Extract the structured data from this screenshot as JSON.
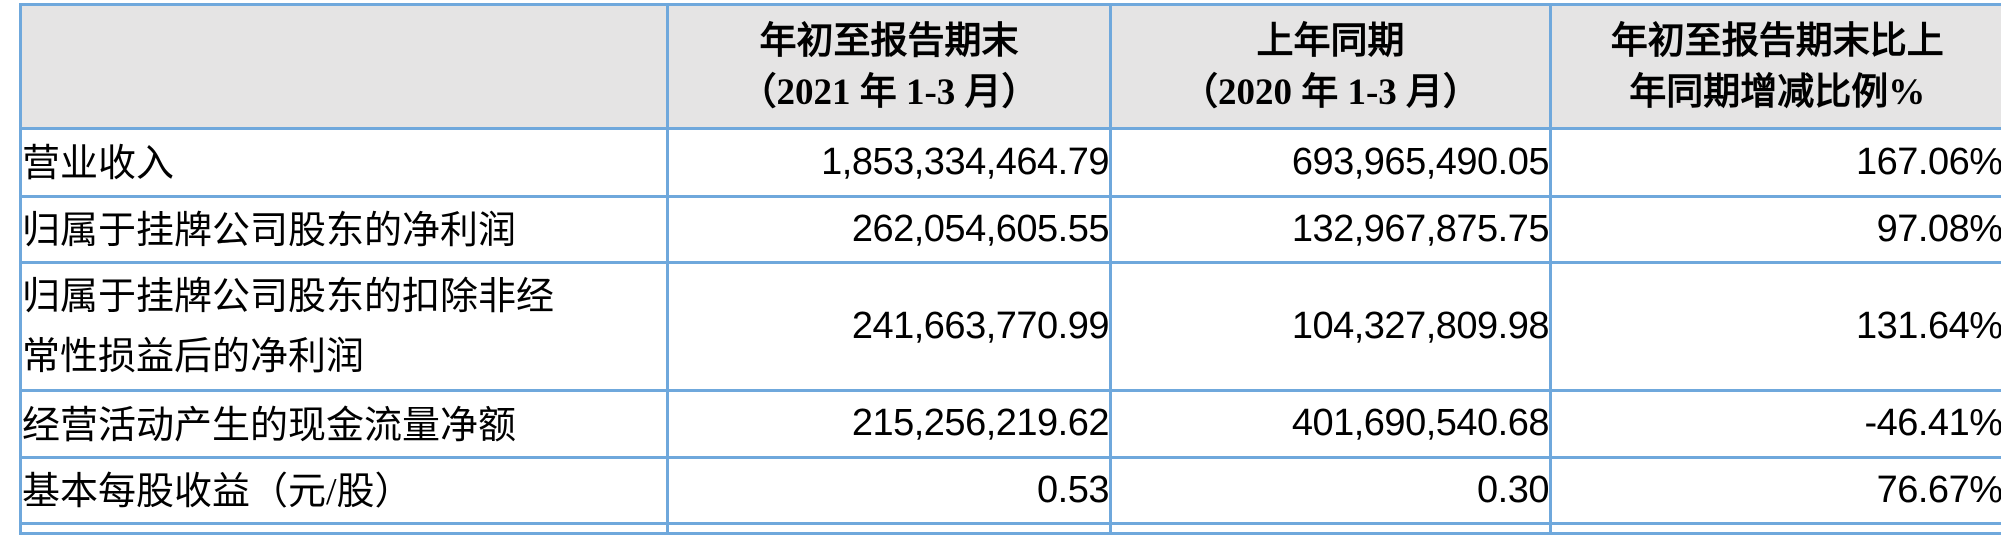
{
  "colors": {
    "border": "#6FA8DC",
    "header_background": "#E5E4E4",
    "body_background": "#FFFFFF",
    "text": "#000000"
  },
  "table": {
    "header": {
      "metric_col": "",
      "current_period": {
        "line1": "年初至报告期末",
        "line2": "（2021 年 1-3 月）"
      },
      "prior_period": {
        "line1": "上年同期",
        "line2": "（2020 年 1-3 月）"
      },
      "change": {
        "line1": "年初至报告期末比上",
        "line2": "年同期增减比例%"
      }
    },
    "rows": [
      {
        "label": "营业收入",
        "current": "1,853,334,464.79",
        "prior": "693,965,490.05",
        "change": "167.06%"
      },
      {
        "label": "归属于挂牌公司股东的净利润",
        "current": "262,054,605.55",
        "prior": "132,967,875.75",
        "change": "97.08%"
      },
      {
        "label": "归属于挂牌公司股东的扣除非经常性损益后的净利润",
        "current": "241,663,770.99",
        "prior": "104,327,809.98",
        "change": "131.64%"
      },
      {
        "label": "经营活动产生的现金流量净额",
        "current": "215,256,219.62",
        "prior": "401,690,540.68",
        "change": "-46.41%"
      },
      {
        "label": "基本每股收益（元/股）",
        "current": "0.53",
        "prior": "0.30",
        "change": "76.67%"
      }
    ]
  }
}
